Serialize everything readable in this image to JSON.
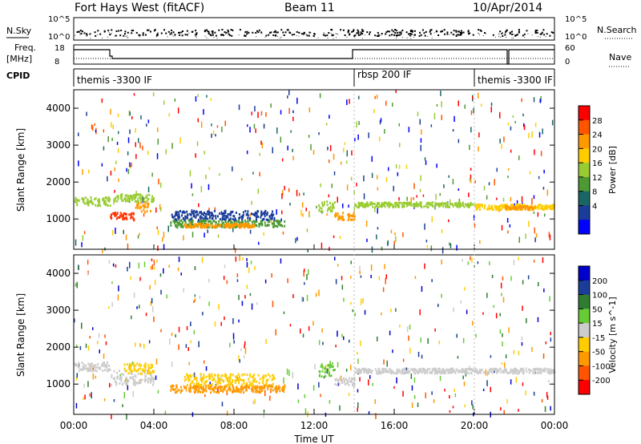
{
  "header": {
    "radar": "Fort Hays West (fitACF)",
    "beam": "Beam 11",
    "date": "10/Apr/2014"
  },
  "noise_panel": {
    "left_label": "N.Sky",
    "left_ticks": [
      "10^5",
      "10^0"
    ],
    "right_label": "N.Search",
    "right_ticks": [
      "10^5",
      "10^0"
    ]
  },
  "freq_panel": {
    "left_label_1": "Freq.",
    "left_label_2": "[MHz]",
    "left_ticks": [
      "18",
      "8"
    ],
    "right_label": "Nave",
    "right_ticks": [
      "60",
      "0"
    ]
  },
  "cpid_panel": {
    "label": "CPID",
    "segments": [
      {
        "label": "themis -3300 IF",
        "start_hour": 0,
        "end_hour": 14
      },
      {
        "label": "rbsp 200 IF",
        "start_hour": 14,
        "end_hour": 20
      },
      {
        "label": "themis -3300 IF",
        "start_hour": 20,
        "end_hour": 24
      }
    ]
  },
  "chart_data": [
    {
      "type": "scatter",
      "name": "power",
      "xlabel": "",
      "ylabel": "Slant Range [km]",
      "xlim": [
        0,
        24
      ],
      "ylim": [
        180,
        4500
      ],
      "y_ticks": [
        "1000",
        "2000",
        "3000",
        "4000"
      ],
      "colorbar": {
        "label": "Power [dB]",
        "ticks": [
          "28",
          "24",
          "20",
          "16",
          "12",
          "8",
          "4"
        ],
        "colors": [
          "#ff0000",
          "#ff5500",
          "#ff9900",
          "#ffcc00",
          "#99cc33",
          "#4d9933",
          "#1a6666",
          "#1a3d99",
          "#0000ff"
        ]
      },
      "bands": [
        {
          "t0": 0.0,
          "t1": 1.8,
          "r0": 1380,
          "r1": 1620,
          "c": "#99cc33"
        },
        {
          "t0": 1.8,
          "t1": 3.0,
          "r0": 1000,
          "r1": 1200,
          "c": "#ff3300"
        },
        {
          "t0": 3.0,
          "t1": 3.8,
          "r0": 1200,
          "r1": 1500,
          "c": "#ff9900"
        },
        {
          "t0": 2.0,
          "t1": 4.0,
          "r0": 1500,
          "r1": 1700,
          "c": "#99cc33"
        },
        {
          "t0": 4.8,
          "t1": 10.5,
          "r0": 800,
          "r1": 1000,
          "c": "#4d9933"
        },
        {
          "t0": 4.8,
          "t1": 10.0,
          "r0": 1000,
          "r1": 1250,
          "c": "#1a3d99"
        },
        {
          "t0": 5.5,
          "t1": 9.0,
          "r0": 800,
          "r1": 900,
          "c": "#ff9900"
        },
        {
          "t0": 12.2,
          "t1": 13.0,
          "r0": 1200,
          "r1": 1500,
          "c": "#99cc33"
        },
        {
          "t0": 13.0,
          "t1": 14.0,
          "r0": 1000,
          "r1": 1200,
          "c": "#ff9900"
        },
        {
          "t0": 14.0,
          "t1": 20.0,
          "r0": 1350,
          "r1": 1480,
          "c": "#99cc33"
        },
        {
          "t0": 20.0,
          "t1": 24.0,
          "r0": 1280,
          "r1": 1420,
          "c": "#ffcc00"
        },
        {
          "t0": 21.5,
          "t1": 23.0,
          "r0": 1280,
          "r1": 1380,
          "c": "#ff9900"
        }
      ]
    },
    {
      "type": "scatter",
      "name": "velocity",
      "xlabel": "Time UT",
      "ylabel": "Slant Range [km]",
      "xlim": [
        0,
        24
      ],
      "ylim": [
        180,
        4500
      ],
      "x_ticks": [
        "00:00",
        "04:00",
        "08:00",
        "12:00",
        "16:00",
        "20:00",
        "00:00"
      ],
      "y_ticks": [
        "1000",
        "2000",
        "3000",
        "4000"
      ],
      "colorbar": {
        "label": "Velocity [m s^-1]",
        "ticks": [
          "200",
          "100",
          "50",
          "15",
          "-15",
          "-50",
          "-100",
          "-200"
        ],
        "colors": [
          "#0000cc",
          "#1a3d99",
          "#2e7d32",
          "#66cc33",
          "#cccccc",
          "#ffcc00",
          "#ff9900",
          "#ff5500",
          "#ff0000"
        ]
      },
      "bands": [
        {
          "t0": 0.0,
          "t1": 1.8,
          "r0": 1380,
          "r1": 1620,
          "c": "#cccccc"
        },
        {
          "t0": 1.8,
          "t1": 4.0,
          "r0": 1000,
          "r1": 1400,
          "c": "#cccccc"
        },
        {
          "t0": 2.5,
          "t1": 4.0,
          "r0": 1300,
          "r1": 1600,
          "c": "#ffcc00"
        },
        {
          "t0": 4.8,
          "t1": 10.5,
          "r0": 800,
          "r1": 1000,
          "c": "#ff9900"
        },
        {
          "t0": 5.5,
          "t1": 10.0,
          "r0": 1000,
          "r1": 1300,
          "c": "#ffcc00"
        },
        {
          "t0": 12.2,
          "t1": 13.0,
          "r0": 1200,
          "r1": 1600,
          "c": "#66cc33"
        },
        {
          "t0": 13.0,
          "t1": 14.0,
          "r0": 1000,
          "r1": 1200,
          "c": "#cccccc"
        },
        {
          "t0": 14.0,
          "t1": 24.0,
          "r0": 1320,
          "r1": 1450,
          "c": "#cccccc"
        }
      ]
    }
  ]
}
